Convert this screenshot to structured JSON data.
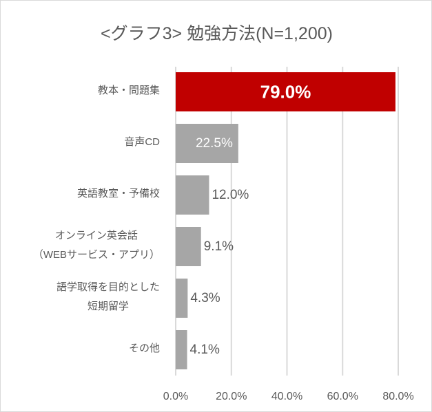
{
  "chart_data": {
    "type": "bar",
    "orientation": "horizontal",
    "title": "<グラフ3> 勉強方法(N=1,200)",
    "categories": [
      "教本・問題集",
      "音声CD",
      "英語教室・予備校",
      "オンライン英会話\n（WEBサービス・アプリ）",
      "語学取得を目的とした\n短期留学",
      "その他"
    ],
    "values": [
      79.0,
      22.5,
      12.0,
      9.1,
      4.3,
      4.1
    ],
    "data_labels": [
      "79.0%",
      "22.5%",
      "12.0%",
      "9.1%",
      "4.3%",
      "4.1%"
    ],
    "xlim": [
      0,
      80
    ],
    "xticks": [
      0,
      20,
      40,
      60,
      80
    ],
    "xtick_labels": [
      "0.0%",
      "20.0%",
      "40.0%",
      "60.0%",
      "80.0%"
    ],
    "xlabel": "",
    "ylabel": "",
    "grid": "vertical",
    "legend": "none",
    "colors": {
      "highlight": "#c00000",
      "default": "#a6a6a6",
      "grid": "#d9d9d9",
      "text": "#595959"
    }
  }
}
